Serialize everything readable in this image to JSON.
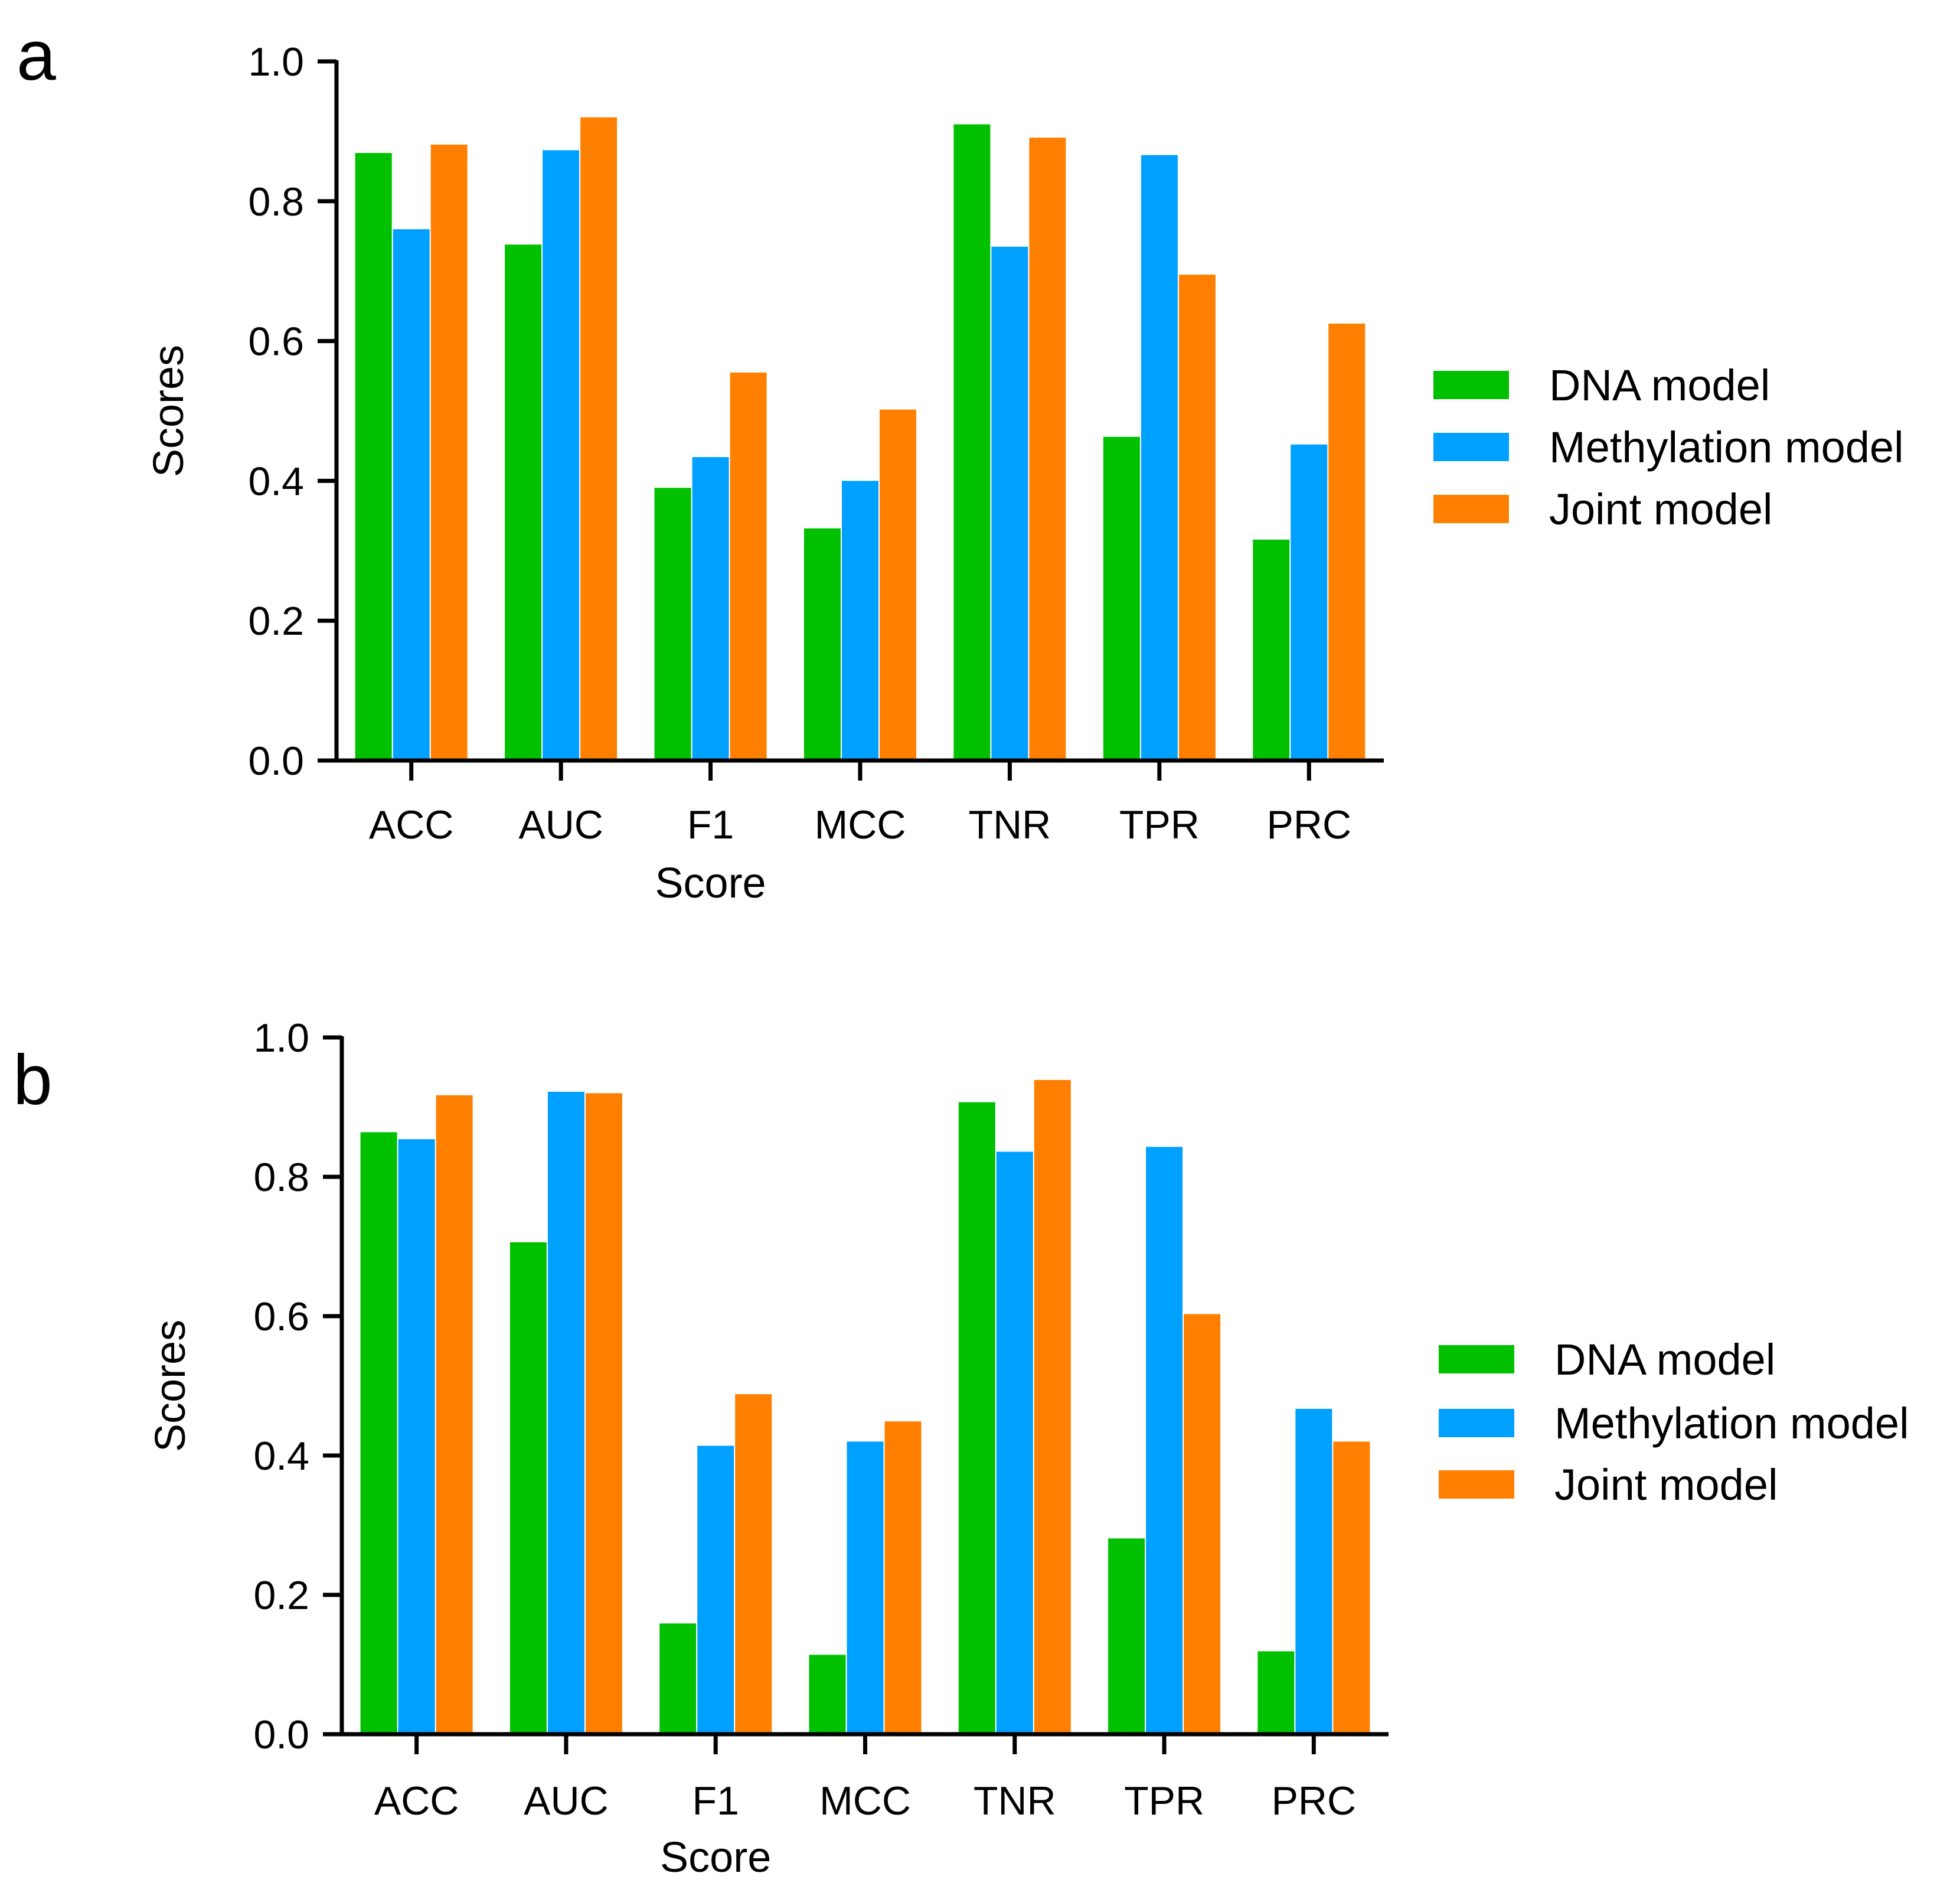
{
  "chart_data": [
    {
      "panel": "a",
      "type": "bar",
      "xlabel": "Score",
      "ylabel": "Scores",
      "ylim": [
        0,
        1.0
      ],
      "yticks": [
        "0.0",
        "0.2",
        "0.4",
        "0.6",
        "0.8",
        "1.0"
      ],
      "categories": [
        "ACC",
        "AUC",
        "F1",
        "MCC",
        "TNR",
        "TPR",
        "PRC"
      ],
      "series": [
        {
          "name": "DNA model",
          "color": "#00c000",
          "values": [
            0.869,
            0.738,
            0.39,
            0.332,
            0.91,
            0.463,
            0.316
          ]
        },
        {
          "name": "Methylation model",
          "color": "#00a0ff",
          "values": [
            0.76,
            0.873,
            0.434,
            0.4,
            0.735,
            0.866,
            0.452
          ]
        },
        {
          "name": "Joint model",
          "color": "#ff8000",
          "values": [
            0.881,
            0.92,
            0.555,
            0.502,
            0.891,
            0.695,
            0.625
          ]
        }
      ],
      "legend": "right"
    },
    {
      "panel": "b",
      "type": "bar",
      "xlabel": "Score",
      "ylabel": "Scores",
      "ylim": [
        0,
        1.0
      ],
      "yticks": [
        "0.0",
        "0.2",
        "0.4",
        "0.6",
        "0.8",
        "1.0"
      ],
      "categories": [
        "ACC",
        "AUC",
        "F1",
        "MCC",
        "TNR",
        "TPR",
        "PRC"
      ],
      "series": [
        {
          "name": "DNA model",
          "color": "#00c000",
          "values": [
            0.864,
            0.706,
            0.159,
            0.114,
            0.907,
            0.281,
            0.119
          ]
        },
        {
          "name": "Methylation model",
          "color": "#00a0ff",
          "values": [
            0.854,
            0.922,
            0.414,
            0.42,
            0.836,
            0.843,
            0.467
          ]
        },
        {
          "name": "Joint model",
          "color": "#ff8000",
          "values": [
            0.917,
            0.92,
            0.488,
            0.449,
            0.939,
            0.603,
            0.42
          ]
        }
      ],
      "legend": "right"
    }
  ]
}
